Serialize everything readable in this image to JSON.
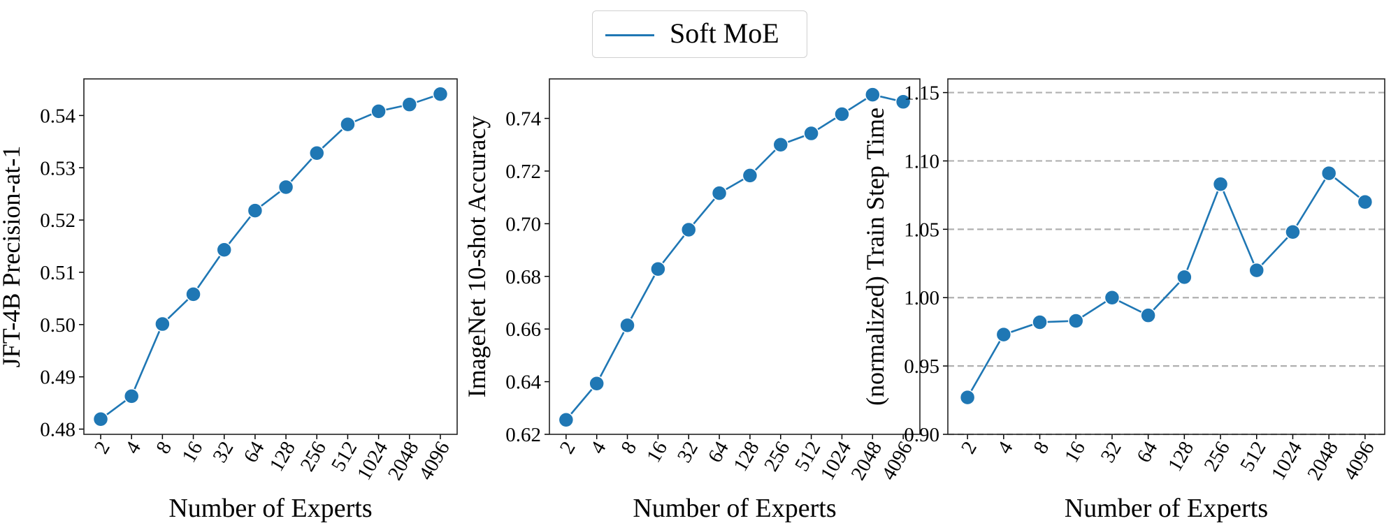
{
  "legend": {
    "label": "Soft MoE",
    "color": "#1f77b4",
    "placement": "top-center"
  },
  "chart_data": [
    {
      "type": "line",
      "xlabel": "Number of Experts",
      "ylabel": "JFT-4B Precision-at-1",
      "categories": [
        "2",
        "4",
        "8",
        "16",
        "32",
        "64",
        "128",
        "256",
        "512",
        "1024",
        "2048",
        "4096"
      ],
      "series": [
        {
          "name": "Soft MoE",
          "values": [
            0.4819,
            0.4863,
            0.5001,
            0.5058,
            0.5143,
            0.5218,
            0.5263,
            0.5328,
            0.5383,
            0.5408,
            0.5421,
            0.5441
          ]
        }
      ],
      "yticks": [
        "0.48",
        "0.49",
        "0.50",
        "0.51",
        "0.52",
        "0.53",
        "0.54"
      ],
      "ylim": [
        0.479,
        0.547
      ],
      "grid": false
    },
    {
      "type": "line",
      "xlabel": "Number of Experts",
      "ylabel": "ImageNet 10-shot Accuracy",
      "categories": [
        "2",
        "4",
        "8",
        "16",
        "32",
        "64",
        "128",
        "256",
        "512",
        "1024",
        "2048",
        "4096"
      ],
      "series": [
        {
          "name": "Soft MoE",
          "values": [
            0.6255,
            0.6393,
            0.6614,
            0.6828,
            0.6977,
            0.7116,
            0.7183,
            0.73,
            0.7343,
            0.7416,
            0.749,
            0.7463
          ]
        }
      ],
      "yticks": [
        "0.62",
        "0.64",
        "0.66",
        "0.68",
        "0.70",
        "0.72",
        "0.74"
      ],
      "ylim": [
        0.62,
        0.755
      ],
      "grid": false
    },
    {
      "type": "line",
      "xlabel": "Number of Experts",
      "ylabel": "(normalized) Train Step Time",
      "categories": [
        "2",
        "4",
        "8",
        "16",
        "32",
        "64",
        "128",
        "256",
        "512",
        "1024",
        "2048",
        "4096"
      ],
      "series": [
        {
          "name": "Soft MoE",
          "values": [
            0.927,
            0.973,
            0.982,
            0.983,
            1.0,
            0.987,
            1.015,
            1.083,
            1.02,
            1.048,
            1.091,
            1.07
          ]
        }
      ],
      "yticks": [
        "0.90",
        "0.95",
        "1.00",
        "1.05",
        "1.10",
        "1.15"
      ],
      "ylim": [
        0.9,
        1.16
      ],
      "grid": true,
      "grid_style": "dashed horizontal"
    }
  ]
}
